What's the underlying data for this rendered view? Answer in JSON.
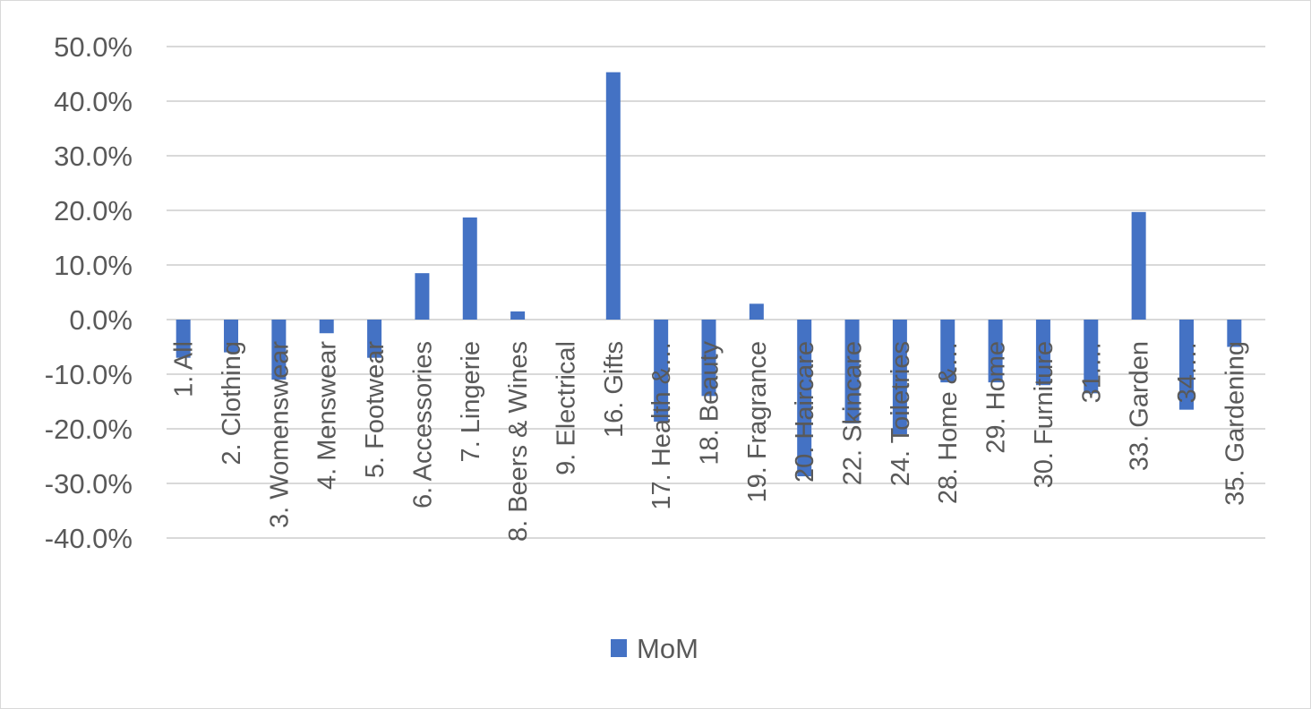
{
  "chart_data": {
    "type": "bar",
    "categories": [
      "1. All",
      "2. Clothing",
      "3. Womenswear",
      "4. Menswear",
      "5. Footwear",
      "6. Accessories",
      "7. Lingerie",
      "8. Beers & Wines",
      "9. Electrical",
      "16. Gifts",
      "17. Health &…",
      "18. Beauty",
      "19. Fragrance",
      "20. Haircare",
      "22. Skincare",
      "24. Toiletries",
      "28. Home &…",
      "29. Home",
      "30. Furniture",
      "31.…",
      "33. Garden",
      "34.…",
      "35. Gardening"
    ],
    "series": [
      {
        "name": "MoM",
        "color": "#4472c4",
        "values": [
          -7.0,
          -6.0,
          -11.0,
          -2.5,
          -7.0,
          8.5,
          18.7,
          1.5,
          0.0,
          45.3,
          -18.7,
          -14.0,
          2.9,
          -28.7,
          -19.0,
          -21.0,
          -11.5,
          -11.5,
          -12.0,
          -13.5,
          19.7,
          -16.5,
          -5.0
        ]
      }
    ],
    "yticks": [
      "50.0%",
      "40.0%",
      "30.0%",
      "20.0%",
      "10.0%",
      "0.0%",
      "-10.0%",
      "-20.0%",
      "-30.0%",
      "-40.0%"
    ],
    "ylim": [
      -40,
      50
    ],
    "value_format": "percent",
    "grid": true,
    "legend_position": "bottom",
    "title": "",
    "xlabel": "",
    "ylabel": ""
  },
  "colors": {
    "gridline": "#d9d9d9",
    "axis_text": "#595959",
    "bar": "#4472c4"
  }
}
